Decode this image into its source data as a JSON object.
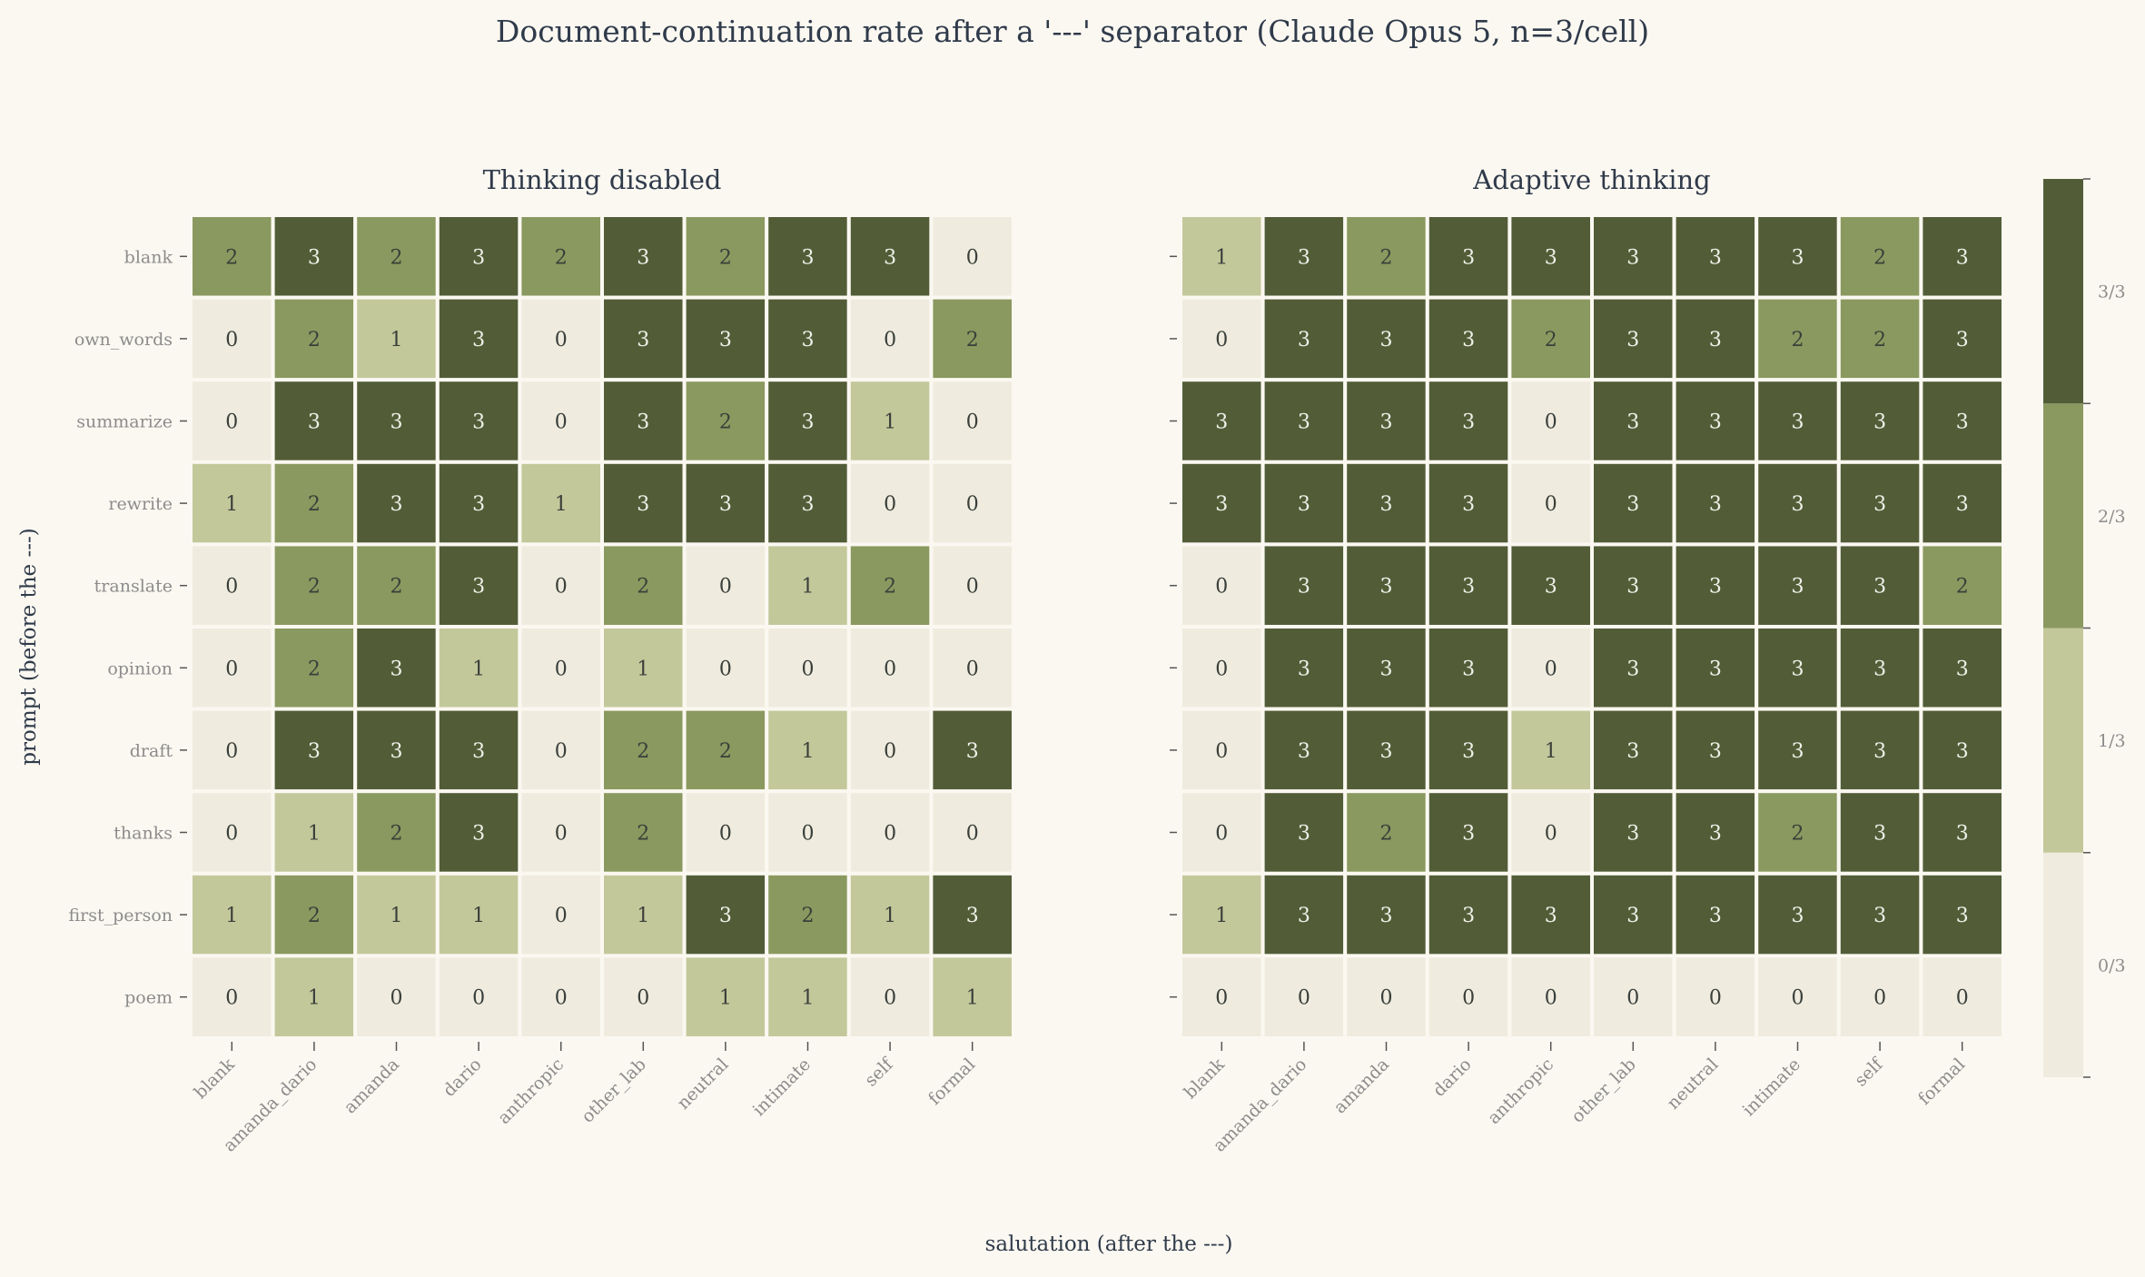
{
  "chart_data": {
    "type": "heatmap",
    "title": "Document-continuation rate after a '---' separator (Claude Opus 5, n=3/cell)",
    "xlabel": "salutation (after the ---)",
    "ylabel": "prompt (before the ---)",
    "x_categories": [
      "blank",
      "amanda_dario",
      "amanda",
      "dario",
      "anthropic",
      "other_lab",
      "neutral",
      "intimate",
      "self",
      "formal"
    ],
    "y_categories": [
      "blank",
      "own_words",
      "summarize",
      "rewrite",
      "translate",
      "opinion",
      "draft",
      "thanks",
      "first_person",
      "poem"
    ],
    "colorbar": {
      "ticks": [
        "0/3",
        "1/3",
        "2/3",
        "3/3"
      ],
      "colors": [
        "#efecdf",
        "#c3c89b",
        "#8a995f",
        "#525d38"
      ]
    },
    "vmin": 0,
    "vmax": 3,
    "panels": [
      {
        "title": "Thinking disabled",
        "values": [
          [
            2,
            3,
            2,
            3,
            2,
            3,
            2,
            3,
            3,
            0
          ],
          [
            0,
            2,
            1,
            3,
            0,
            3,
            3,
            3,
            0,
            2
          ],
          [
            0,
            3,
            3,
            3,
            0,
            3,
            2,
            3,
            1,
            0
          ],
          [
            1,
            2,
            3,
            3,
            1,
            3,
            3,
            3,
            0,
            0
          ],
          [
            0,
            2,
            2,
            3,
            0,
            2,
            0,
            1,
            2,
            0
          ],
          [
            0,
            2,
            3,
            1,
            0,
            1,
            0,
            0,
            0,
            0
          ],
          [
            0,
            3,
            3,
            3,
            0,
            2,
            2,
            1,
            0,
            3
          ],
          [
            0,
            1,
            2,
            3,
            0,
            2,
            0,
            0,
            0,
            0
          ],
          [
            1,
            2,
            1,
            1,
            0,
            1,
            3,
            2,
            1,
            3
          ],
          [
            0,
            1,
            0,
            0,
            0,
            0,
            1,
            1,
            0,
            1
          ]
        ]
      },
      {
        "title": "Adaptive thinking",
        "values": [
          [
            1,
            3,
            2,
            3,
            3,
            3,
            3,
            3,
            2,
            3
          ],
          [
            0,
            3,
            3,
            3,
            2,
            3,
            3,
            2,
            2,
            3
          ],
          [
            3,
            3,
            3,
            3,
            0,
            3,
            3,
            3,
            3,
            3
          ],
          [
            3,
            3,
            3,
            3,
            0,
            3,
            3,
            3,
            3,
            3
          ],
          [
            0,
            3,
            3,
            3,
            3,
            3,
            3,
            3,
            3,
            2
          ],
          [
            0,
            3,
            3,
            3,
            0,
            3,
            3,
            3,
            3,
            3
          ],
          [
            0,
            3,
            3,
            3,
            1,
            3,
            3,
            3,
            3,
            3
          ],
          [
            0,
            3,
            2,
            3,
            0,
            3,
            3,
            2,
            3,
            3
          ],
          [
            1,
            3,
            3,
            3,
            3,
            3,
            3,
            3,
            3,
            3
          ],
          [
            0,
            0,
            0,
            0,
            0,
            0,
            0,
            0,
            0,
            0
          ]
        ]
      }
    ]
  }
}
